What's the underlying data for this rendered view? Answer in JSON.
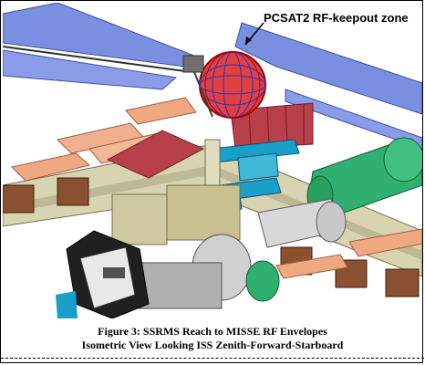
{
  "callout": {
    "label": "PCSAT2 RF-keepout zone"
  },
  "caption": {
    "line1": "Figure 3: SSRMS Reach to MISSE RF Envelopes",
    "line2": "Isometric View Looking ISS Zenith-Forward-Starboard"
  },
  "colors": {
    "solar_array_blue": "#7a8fe0",
    "solar_array_salmon": "#f0a880",
    "radiator_red": "#b8404a",
    "truss_olive": "#c8c090",
    "blanket_brown": "#8a5030",
    "module_gray": "#d0d0d0",
    "module_cyan": "#1aa0c8",
    "node_green": "#30b070",
    "keepout_zone_red": "#d01010",
    "keepout_zone_blue": "#3030c0"
  }
}
